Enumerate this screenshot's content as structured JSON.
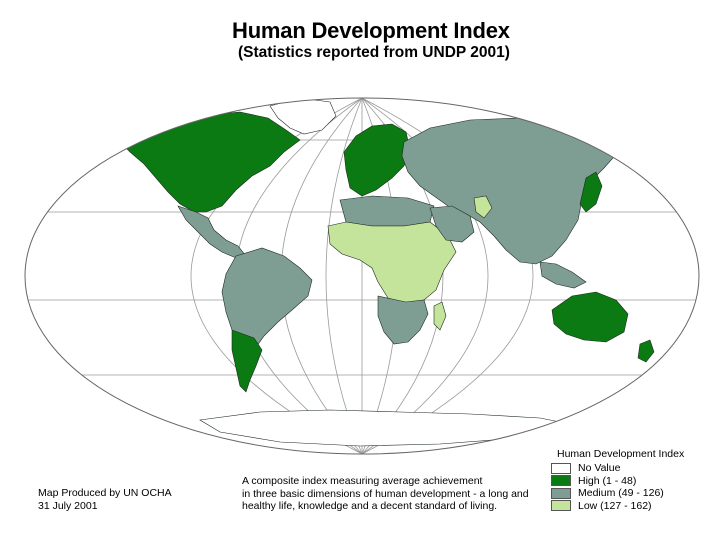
{
  "title": "Human Development Index",
  "subtitle": "(Statistics reported from UNDP 2001)",
  "colors": {
    "high": "#0b7a12",
    "medium": "#7f9e93",
    "low": "#c3e49a",
    "no_value": "#ffffff",
    "ocean": "#ffffff",
    "graticule": "#9a9a9a",
    "border": "#1e2b22"
  },
  "legend": {
    "title": "Human Development Index",
    "items": [
      {
        "key": "no_value",
        "label": "No Value",
        "color": "#ffffff"
      },
      {
        "key": "high",
        "label": "High (1 - 48)",
        "color": "#0b7a12"
      },
      {
        "key": "medium",
        "label": "Medium (49 - 126)",
        "color": "#7f9e93"
      },
      {
        "key": "low",
        "label": "Low (127 - 162)",
        "color": "#c3e49a"
      }
    ]
  },
  "description": {
    "lines": [
      "A composite index measuring average achievement",
      "in three basic dimensions of human development - a long and",
      "healthy life, knowledge and a decent standard of living."
    ]
  },
  "credit": {
    "lines": [
      "Map Produced by UN OCHA",
      "31 July 2001"
    ]
  }
}
